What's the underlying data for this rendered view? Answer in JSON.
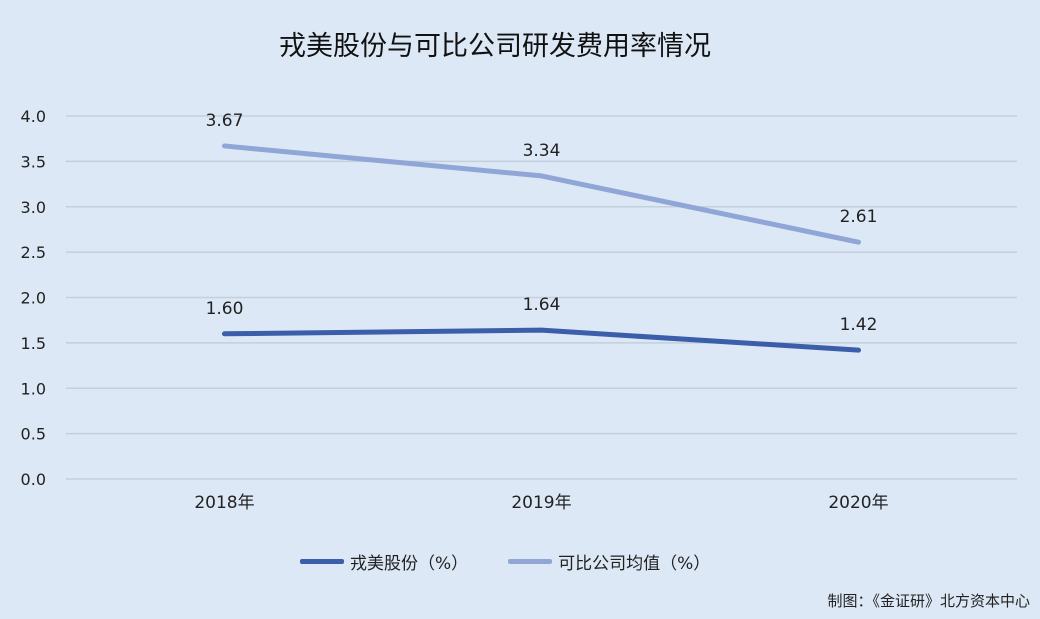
{
  "chart_data": {
    "type": "line",
    "title": "戎美股份与可比公司研发费用率情况",
    "categories": [
      "2018年",
      "2019年",
      "2020年"
    ],
    "ylim": [
      0,
      4.0
    ],
    "yticks": [
      "0.0",
      "0.5",
      "1.0",
      "1.5",
      "2.0",
      "2.5",
      "3.0",
      "3.5",
      "4.0"
    ],
    "grid": true,
    "legend_position": "bottom",
    "series": [
      {
        "name": "戎美股份（%）",
        "values": [
          1.6,
          1.64,
          1.42
        ],
        "labels": [
          "1.60",
          "1.64",
          "1.42"
        ],
        "color": "#3a5ea9"
      },
      {
        "name": "可比公司均值（%）",
        "values": [
          3.67,
          3.34,
          2.61
        ],
        "labels": [
          "3.67",
          "3.34",
          "2.61"
        ],
        "color": "#8fa6d6"
      }
    ]
  },
  "credit": "制图：《金证研》北方资本中心"
}
